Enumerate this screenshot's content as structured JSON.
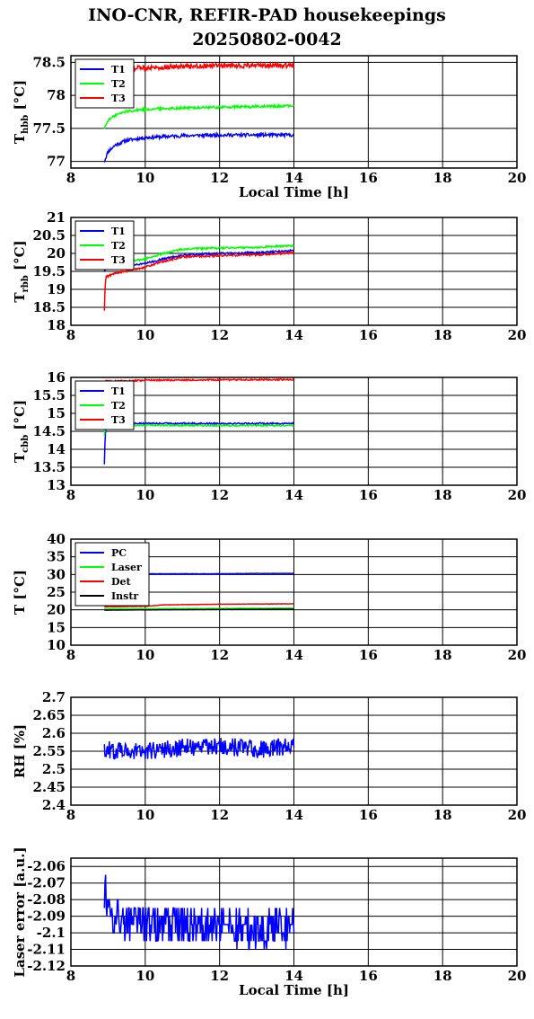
{
  "title": {
    "line1": "INO-CNR, REFIR-PAD housekeepings",
    "line2": "20250802-0042"
  },
  "chart_data": [
    {
      "type": "line",
      "ylabel_main": "T",
      "ylabel_sub": "hbb",
      "ylabel_unit": " [°C]",
      "xlabel": "Local Time [h]",
      "xlim": [
        8,
        20
      ],
      "ylim": [
        76.9,
        78.6
      ],
      "xticks": [
        8,
        10,
        12,
        14,
        16,
        18,
        20
      ],
      "yticks": [
        77,
        77.5,
        78,
        78.5
      ],
      "yticklabels": [
        "77",
        "77.5",
        "78",
        "78.5"
      ],
      "grid": true,
      "legend_position": "top-left",
      "series": [
        {
          "name": "T1",
          "color": "#0000ff",
          "x": [
            8.9,
            9.0,
            9.2,
            9.5,
            10,
            11,
            12,
            13,
            14
          ],
          "y": [
            77.0,
            77.15,
            77.25,
            77.32,
            77.36,
            77.39,
            77.4,
            77.4,
            77.4
          ],
          "noise": 0.025
        },
        {
          "name": "T2",
          "color": "#00ff00",
          "x": [
            8.9,
            9.0,
            9.2,
            9.5,
            10,
            11,
            12,
            13,
            14
          ],
          "y": [
            77.5,
            77.62,
            77.7,
            77.76,
            77.79,
            77.81,
            77.82,
            77.83,
            77.84
          ],
          "noise": 0.02
        },
        {
          "name": "T3",
          "color": "#ff0000",
          "x": [
            9.4,
            10,
            11,
            12,
            13,
            14
          ],
          "y": [
            78.4,
            78.42,
            78.44,
            78.45,
            78.45,
            78.45
          ],
          "noise": 0.035
        }
      ]
    },
    {
      "type": "line",
      "ylabel_main": "T",
      "ylabel_sub": "rbb",
      "ylabel_unit": " [°C]",
      "xlabel": "",
      "xlim": [
        8,
        20
      ],
      "ylim": [
        18,
        21
      ],
      "xticks": [
        8,
        10,
        12,
        14,
        16,
        18,
        20
      ],
      "yticks": [
        18,
        18.5,
        19,
        19.5,
        20,
        20.5,
        21
      ],
      "yticklabels": [
        "18",
        "18.5",
        "19",
        "19.5",
        "20",
        "20.5",
        "21"
      ],
      "grid": true,
      "legend_position": "top-left",
      "series": [
        {
          "name": "T1",
          "color": "#0000ff",
          "x": [
            8.9,
            8.95,
            9.2,
            10,
            10.5,
            11,
            12,
            13,
            14
          ],
          "y": [
            19.5,
            19.6,
            19.6,
            19.72,
            19.85,
            19.95,
            20.0,
            20.02,
            20.08
          ],
          "noise": 0.025
        },
        {
          "name": "T2",
          "color": "#00ff00",
          "x": [
            8.9,
            8.95,
            9.2,
            10,
            10.5,
            11,
            12,
            13,
            14
          ],
          "y": [
            19.6,
            19.62,
            19.7,
            19.85,
            20.0,
            20.12,
            20.15,
            20.17,
            20.22
          ],
          "noise": 0.025
        },
        {
          "name": "T3",
          "color": "#ff0000",
          "x": [
            8.9,
            8.92,
            8.95,
            9.2,
            10,
            10.5,
            11,
            12,
            13,
            14
          ],
          "y": [
            18.4,
            19.1,
            19.35,
            19.45,
            19.62,
            19.78,
            19.9,
            19.94,
            19.96,
            20.02
          ],
          "noise": 0.025
        }
      ]
    },
    {
      "type": "line",
      "ylabel_main": "T",
      "ylabel_sub": "cbb",
      "ylabel_unit": " [°C]",
      "xlabel": "",
      "xlim": [
        8,
        20
      ],
      "ylim": [
        13,
        16
      ],
      "xticks": [
        8,
        10,
        12,
        14,
        16,
        18,
        20
      ],
      "yticks": [
        13,
        13.5,
        14,
        14.5,
        15,
        15.5,
        16
      ],
      "yticklabels": [
        "13",
        "13.5",
        "14",
        "14.5",
        "15",
        "15.5",
        "16"
      ],
      "grid": true,
      "legend_position": "top-left",
      "series": [
        {
          "name": "T1",
          "color": "#0000ff",
          "x": [
            8.9,
            8.92,
            8.95,
            9.2,
            10,
            12,
            14
          ],
          "y": [
            13.6,
            14.3,
            14.7,
            14.72,
            14.72,
            14.72,
            14.72
          ],
          "noise": 0.02
        },
        {
          "name": "T2",
          "color": "#00ff00",
          "x": [
            8.9,
            8.92,
            8.95,
            9.2,
            10,
            12,
            14
          ],
          "y": [
            14.4,
            14.6,
            14.65,
            14.67,
            14.67,
            14.66,
            14.66
          ],
          "noise": 0.02
        },
        {
          "name": "T3",
          "color": "#ff0000",
          "x": [
            8.9,
            9.4,
            10,
            12,
            14
          ],
          "y": [
            15.9,
            15.9,
            15.92,
            15.93,
            15.94
          ],
          "noise": 0.02
        }
      ]
    },
    {
      "type": "line",
      "ylabel_main": "T [°C]",
      "ylabel_sub": "",
      "ylabel_unit": "",
      "xlabel": "",
      "xlim": [
        8,
        20
      ],
      "ylim": [
        10,
        40
      ],
      "xticks": [
        8,
        10,
        12,
        14,
        16,
        18,
        20
      ],
      "yticks": [
        10,
        15,
        20,
        25,
        30,
        35,
        40
      ],
      "yticklabels": [
        "10",
        "15",
        "20",
        "25",
        "30",
        "35",
        "40"
      ],
      "grid": true,
      "legend_position": "top-left",
      "series": [
        {
          "name": "PC",
          "color": "#0000ff",
          "x": [
            9.5,
            10,
            11,
            12,
            13,
            14
          ],
          "y": [
            30.2,
            30.2,
            30.2,
            30.2,
            30.3,
            30.3
          ],
          "noise": 0.05
        },
        {
          "name": "Laser",
          "color": "#00ff00",
          "x": [
            8.9,
            10,
            12,
            14
          ],
          "y": [
            20.3,
            20.3,
            20.4,
            20.5
          ],
          "noise": 0.05
        },
        {
          "name": "Det",
          "color": "#ff0000",
          "x": [
            8.9,
            10,
            10.5,
            12,
            14
          ],
          "y": [
            20.9,
            21.0,
            21.4,
            21.6,
            21.7
          ],
          "noise": 0.05
        },
        {
          "name": "Instr",
          "color": "#000000",
          "x": [
            8.9,
            10,
            12,
            14
          ],
          "y": [
            19.9,
            20.0,
            20.1,
            20.2
          ],
          "noise": 0.03
        }
      ]
    },
    {
      "type": "line",
      "ylabel_main": "RH [%]",
      "ylabel_sub": "",
      "ylabel_unit": "",
      "xlabel": "",
      "xlim": [
        8,
        20
      ],
      "ylim": [
        2.4,
        2.7
      ],
      "xticks": [
        8,
        10,
        12,
        14,
        16,
        18,
        20
      ],
      "yticks": [
        2.4,
        2.45,
        2.5,
        2.55,
        2.6,
        2.65,
        2.7
      ],
      "yticklabels": [
        "2.4",
        "2.45",
        "2.5",
        "2.55",
        "2.6",
        "2.65",
        "2.7"
      ],
      "grid": true,
      "legend_position": "none",
      "series": [
        {
          "name": "",
          "color": "#0000ff",
          "x": [
            8.9,
            10,
            11,
            12,
            13,
            14
          ],
          "y": [
            2.555,
            2.55,
            2.56,
            2.565,
            2.555,
            2.565
          ],
          "noise": 0.025
        }
      ]
    },
    {
      "type": "line",
      "ylabel_main": "Laser error [a.u.]",
      "ylabel_sub": "",
      "ylabel_unit": "",
      "xlabel": "Local Time [h]",
      "xlim": [
        8,
        20
      ],
      "ylim": [
        -2.12,
        -2.055
      ],
      "xticks": [
        8,
        10,
        12,
        14,
        16,
        18,
        20
      ],
      "yticks": [
        -2.12,
        -2.11,
        -2.1,
        -2.09,
        -2.08,
        -2.07,
        -2.06
      ],
      "yticklabels": [
        "-2.12",
        "-2.11",
        "-2.1",
        "-2.09",
        "-2.08",
        "-2.07",
        "-2.06"
      ],
      "grid": true,
      "legend_position": "none",
      "series": [
        {
          "name": "",
          "color": "#0000ff",
          "x": [
            8.9,
            9.0,
            9.1,
            10,
            11,
            12,
            13,
            14
          ],
          "y": [
            -2.075,
            -2.08,
            -2.09,
            -2.095,
            -2.095,
            -2.095,
            -2.1,
            -2.095
          ],
          "noise": 0.012,
          "step": 0.005
        }
      ]
    }
  ]
}
